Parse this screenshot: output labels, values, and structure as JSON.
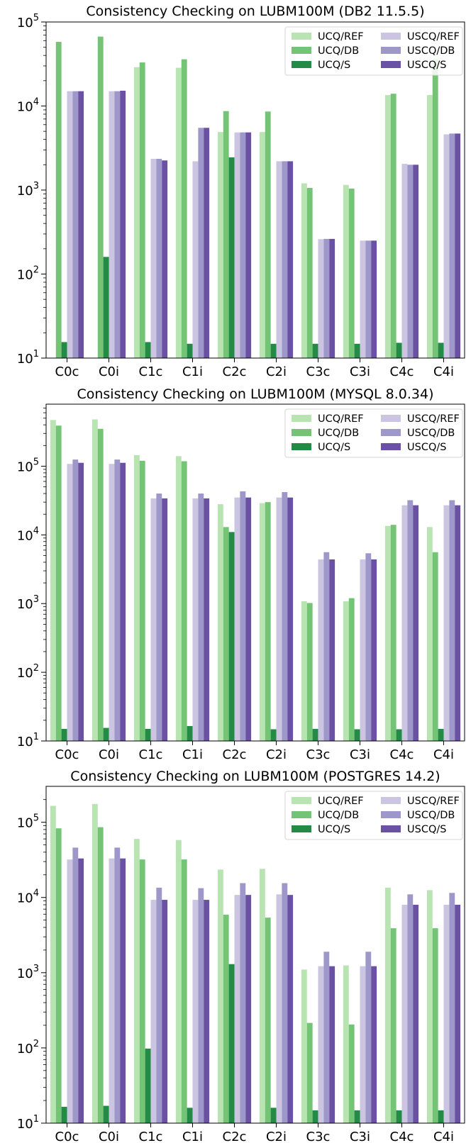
{
  "chart_data": [
    {
      "type": "bar",
      "title": "Consistency Checking on LUBM100M (DB2 11.5.5)",
      "scale": "log",
      "ylim": [
        10,
        100000
      ],
      "y_ticks": [
        {
          "value": 10,
          "mantissa": "10",
          "exp": "1"
        },
        {
          "value": 100,
          "mantissa": "10",
          "exp": "2"
        },
        {
          "value": 1000,
          "mantissa": "10",
          "exp": "3"
        },
        {
          "value": 10000,
          "mantissa": "10",
          "exp": "4"
        },
        {
          "value": 100000,
          "mantissa": "10",
          "exp": "5"
        }
      ],
      "categories": [
        "C0c",
        "C0i",
        "C1c",
        "C1i",
        "C2c",
        "C2i",
        "C3c",
        "C3i",
        "C4c",
        "C4i"
      ],
      "series": [
        {
          "name": "UCQ/REF",
          "color": "#b7e4b0",
          "values": [
            null,
            null,
            29000,
            28500,
            4900,
            4900,
            1200,
            1150,
            13500,
            13500
          ]
        },
        {
          "name": "UCQ/DB",
          "color": "#74c476",
          "values": [
            58000,
            67000,
            33000,
            36000,
            8700,
            8600,
            1060,
            1040,
            14000,
            36000
          ]
        },
        {
          "name": "UCQ/S",
          "color": "#238b45",
          "values": [
            15.5,
            160,
            15.5,
            14.8,
            2450,
            14.8,
            14.8,
            14.8,
            15.2,
            15.2
          ]
        },
        {
          "name": "USCQ/REF",
          "color": "#cbc5e1",
          "values": [
            15000,
            15000,
            2350,
            2200,
            4850,
            2200,
            260,
            250,
            2050,
            4600
          ]
        },
        {
          "name": "USCQ/DB",
          "color": "#9e97c9",
          "values": [
            15000,
            15000,
            2350,
            5500,
            4850,
            2200,
            262,
            250,
            2000,
            4700
          ]
        },
        {
          "name": "USCQ/S",
          "color": "#6a51a3",
          "values": [
            15000,
            15200,
            2250,
            5500,
            4850,
            2200,
            262,
            250,
            2000,
            4700
          ]
        }
      ]
    },
    {
      "type": "bar",
      "title": "Consistency Checking on LUBM100M (MYSQL 8.0.34)",
      "scale": "log",
      "ylim": [
        10,
        800000
      ],
      "y_ticks": [
        {
          "value": 10,
          "mantissa": "10",
          "exp": "1"
        },
        {
          "value": 100,
          "mantissa": "10",
          "exp": "2"
        },
        {
          "value": 1000,
          "mantissa": "10",
          "exp": "3"
        },
        {
          "value": 10000,
          "mantissa": "10",
          "exp": "4"
        },
        {
          "value": 100000,
          "mantissa": "10",
          "exp": "5"
        }
      ],
      "categories": [
        "C0c",
        "C0i",
        "C1c",
        "C1i",
        "C2c",
        "C2i",
        "C3c",
        "C3i",
        "C4c",
        "C4i"
      ],
      "series": [
        {
          "name": "UCQ/REF",
          "color": "#b7e4b0",
          "values": [
            470000,
            480000,
            145000,
            140000,
            28000,
            29000,
            1080,
            1080,
            13500,
            13000
          ]
        },
        {
          "name": "UCQ/DB",
          "color": "#74c476",
          "values": [
            390000,
            350000,
            120000,
            118000,
            13000,
            30000,
            1020,
            1200,
            14000,
            5600
          ]
        },
        {
          "name": "UCQ/S",
          "color": "#238b45",
          "values": [
            15,
            15.5,
            15,
            16.5,
            11000,
            14.8,
            15,
            14.8,
            14.8,
            15
          ]
        },
        {
          "name": "USCQ/REF",
          "color": "#cbc5e1",
          "values": [
            108000,
            108000,
            34000,
            34000,
            35000,
            35000,
            4400,
            4400,
            27000,
            27000
          ]
        },
        {
          "name": "USCQ/DB",
          "color": "#9e97c9",
          "values": [
            125000,
            125000,
            40000,
            40000,
            43000,
            42000,
            5600,
            5400,
            32000,
            32000
          ]
        },
        {
          "name": "USCQ/S",
          "color": "#6a51a3",
          "values": [
            112000,
            112000,
            34000,
            34000,
            35000,
            35000,
            4400,
            4400,
            27000,
            27000
          ]
        }
      ]
    },
    {
      "type": "bar",
      "title": "Consistency Checking on LUBM100M (POSTGRES 14.2)",
      "scale": "log",
      "ylim": [
        10,
        300000
      ],
      "y_ticks": [
        {
          "value": 10,
          "mantissa": "10",
          "exp": "1"
        },
        {
          "value": 100,
          "mantissa": "10",
          "exp": "2"
        },
        {
          "value": 1000,
          "mantissa": "10",
          "exp": "3"
        },
        {
          "value": 10000,
          "mantissa": "10",
          "exp": "4"
        },
        {
          "value": 100000,
          "mantissa": "10",
          "exp": "5"
        }
      ],
      "categories": [
        "C0c",
        "C0i",
        "C1c",
        "C1i",
        "C2c",
        "C2i",
        "C3c",
        "C3i",
        "C4c",
        "C4i"
      ],
      "series": [
        {
          "name": "UCQ/REF",
          "color": "#b7e4b0",
          "values": [
            165000,
            175000,
            60000,
            58000,
            23500,
            24000,
            1100,
            1250,
            13500,
            12500
          ]
        },
        {
          "name": "UCQ/DB",
          "color": "#74c476",
          "values": [
            83000,
            86000,
            32000,
            32000,
            5900,
            5400,
            215,
            205,
            3900,
            3900
          ]
        },
        {
          "name": "UCQ/S",
          "color": "#238b45",
          "values": [
            16.5,
            17,
            98,
            16,
            1300,
            16,
            14.8,
            14.8,
            14.8,
            14.8
          ]
        },
        {
          "name": "USCQ/REF",
          "color": "#cbc5e1",
          "values": [
            32000,
            33000,
            9300,
            9300,
            10800,
            11000,
            1220,
            1220,
            8000,
            8000
          ]
        },
        {
          "name": "USCQ/DB",
          "color": "#9e97c9",
          "values": [
            46000,
            46000,
            13500,
            13300,
            15500,
            15500,
            1900,
            1900,
            11000,
            11500
          ]
        },
        {
          "name": "USCQ/S",
          "color": "#6a51a3",
          "values": [
            33000,
            33000,
            9300,
            9300,
            10800,
            10800,
            1220,
            1220,
            8000,
            8000
          ]
        }
      ]
    }
  ]
}
